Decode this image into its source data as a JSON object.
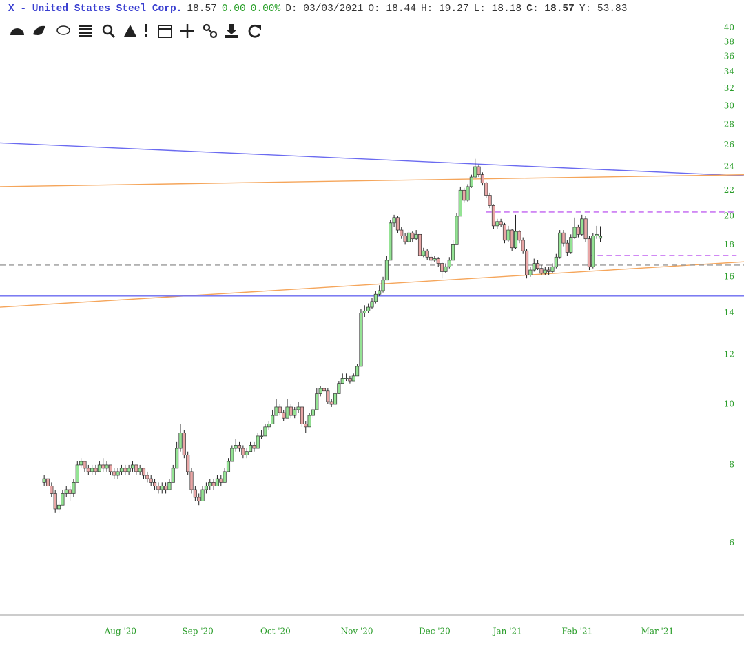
{
  "header": {
    "symbol": "X - United States Steel Corp.",
    "last": "18.57",
    "change": "0.00",
    "change_pct": "0.00%",
    "date": "D: 03/03/2021",
    "open": "O: 18.44",
    "high": "H: 19.27",
    "low": "L: 18.18",
    "close": "C: 18.57",
    "ytd": "Y: 53.83"
  },
  "chart_data": {
    "type": "candlestick",
    "log_scale": true,
    "grid": false,
    "up_color": "#94e394",
    "down_color": "#e8a6a6",
    "xlim": [
      -12,
      190
    ],
    "ylim": [
      4.6,
      41.1
    ],
    "yticks": [
      6,
      8,
      10,
      12,
      14,
      16,
      18,
      20,
      22,
      24,
      26,
      28,
      30,
      32,
      34,
      36,
      38,
      40
    ],
    "xticks": [
      {
        "value": 20.7,
        "label": "Aug '20"
      },
      {
        "value": 41.7,
        "label": "Sep '20"
      },
      {
        "value": 62.8,
        "label": "Oct '20"
      },
      {
        "value": 84.9,
        "label": "Nov '20"
      },
      {
        "value": 106,
        "label": "Dec '20"
      },
      {
        "value": 125.8,
        "label": "Jan '21"
      },
      {
        "value": 144.7,
        "label": "Feb '21"
      },
      {
        "value": 166.5,
        "label": "Mar '21"
      }
    ],
    "lines": [
      {
        "color": "#6a6af0",
        "dash": false,
        "start": [
          -12,
          26.2
        ],
        "end": [
          190,
          23.2
        ]
      },
      {
        "color": "#f5a55a",
        "dash": false,
        "start": [
          -12,
          22.3
        ],
        "end": [
          190,
          23.3
        ]
      },
      {
        "color": "#f5a55a",
        "dash": false,
        "start": [
          -12,
          14.3
        ],
        "end": [
          190,
          16.9
        ]
      },
      {
        "color": "#6a6af0",
        "dash": false,
        "start": [
          -12,
          14.9
        ],
        "end": [
          190,
          14.9
        ]
      },
      {
        "color": "#999999",
        "dash": true,
        "start": [
          -12,
          16.7
        ],
        "end": [
          190,
          16.7
        ]
      },
      {
        "color": "#c060f0",
        "dash": true,
        "start": [
          120,
          20.3
        ],
        "end": [
          188,
          20.3
        ]
      },
      {
        "color": "#c060f0",
        "dash": true,
        "start": [
          147.8,
          17.3
        ],
        "end": [
          188,
          17.3
        ]
      }
    ],
    "candles": [
      {
        "o": 7.5,
        "h": 7.7,
        "l": 7.4,
        "c": 7.6
      },
      {
        "o": 7.6,
        "h": 7.6,
        "l": 7.3,
        "c": 7.4
      },
      {
        "o": 7.4,
        "h": 7.5,
        "l": 7.1,
        "c": 7.2
      },
      {
        "o": 7.2,
        "h": 7.3,
        "l": 6.7,
        "c": 6.8
      },
      {
        "o": 6.8,
        "h": 7.0,
        "l": 6.7,
        "c": 6.9
      },
      {
        "o": 6.9,
        "h": 7.3,
        "l": 6.9,
        "c": 7.2
      },
      {
        "o": 7.2,
        "h": 7.4,
        "l": 7.1,
        "c": 7.3
      },
      {
        "o": 7.3,
        "h": 7.4,
        "l": 7.0,
        "c": 7.2
      },
      {
        "o": 7.2,
        "h": 7.6,
        "l": 7.1,
        "c": 7.5
      },
      {
        "o": 7.5,
        "h": 8.1,
        "l": 7.5,
        "c": 8.0
      },
      {
        "o": 8.0,
        "h": 8.2,
        "l": 7.9,
        "c": 8.1
      },
      {
        "o": 8.1,
        "h": 8.1,
        "l": 7.8,
        "c": 7.9
      },
      {
        "o": 7.9,
        "h": 8.0,
        "l": 7.7,
        "c": 7.8
      },
      {
        "o": 7.8,
        "h": 8.0,
        "l": 7.7,
        "c": 7.9
      },
      {
        "o": 7.9,
        "h": 8.0,
        "l": 7.7,
        "c": 7.8
      },
      {
        "o": 7.8,
        "h": 8.1,
        "l": 7.8,
        "c": 8.0
      },
      {
        "o": 8.0,
        "h": 8.2,
        "l": 7.8,
        "c": 7.9
      },
      {
        "o": 7.9,
        "h": 8.1,
        "l": 7.8,
        "c": 8.0
      },
      {
        "o": 8.0,
        "h": 8.0,
        "l": 7.7,
        "c": 7.8
      },
      {
        "o": 7.8,
        "h": 7.9,
        "l": 7.6,
        "c": 7.7
      },
      {
        "o": 7.7,
        "h": 7.9,
        "l": 7.6,
        "c": 7.8
      },
      {
        "o": 7.8,
        "h": 8.0,
        "l": 7.7,
        "c": 7.9
      },
      {
        "o": 7.9,
        "h": 8.0,
        "l": 7.7,
        "c": 7.8
      },
      {
        "o": 7.8,
        "h": 8.0,
        "l": 7.7,
        "c": 7.9
      },
      {
        "o": 7.9,
        "h": 8.1,
        "l": 7.8,
        "c": 8.0
      },
      {
        "o": 8.0,
        "h": 8.0,
        "l": 7.7,
        "c": 7.8
      },
      {
        "o": 7.8,
        "h": 8.0,
        "l": 7.7,
        "c": 7.9
      },
      {
        "o": 7.9,
        "h": 7.9,
        "l": 7.6,
        "c": 7.7
      },
      {
        "o": 7.7,
        "h": 7.8,
        "l": 7.5,
        "c": 7.6
      },
      {
        "o": 7.6,
        "h": 7.7,
        "l": 7.4,
        "c": 7.5
      },
      {
        "o": 7.5,
        "h": 7.6,
        "l": 7.3,
        "c": 7.4
      },
      {
        "o": 7.4,
        "h": 7.5,
        "l": 7.2,
        "c": 7.3
      },
      {
        "o": 7.3,
        "h": 7.5,
        "l": 7.2,
        "c": 7.4
      },
      {
        "o": 7.4,
        "h": 7.5,
        "l": 7.2,
        "c": 7.3
      },
      {
        "o": 7.3,
        "h": 7.6,
        "l": 7.3,
        "c": 7.5
      },
      {
        "o": 7.5,
        "h": 8.0,
        "l": 7.5,
        "c": 7.9
      },
      {
        "o": 7.9,
        "h": 8.7,
        "l": 7.9,
        "c": 8.5
      },
      {
        "o": 8.5,
        "h": 9.3,
        "l": 8.4,
        "c": 9.0
      },
      {
        "o": 9.0,
        "h": 9.1,
        "l": 8.2,
        "c": 8.3
      },
      {
        "o": 8.3,
        "h": 8.4,
        "l": 7.7,
        "c": 7.8
      },
      {
        "o": 7.8,
        "h": 7.9,
        "l": 7.2,
        "c": 7.3
      },
      {
        "o": 7.3,
        "h": 7.4,
        "l": 7.0,
        "c": 7.1
      },
      {
        "o": 7.1,
        "h": 7.2,
        "l": 6.9,
        "c": 7.0
      },
      {
        "o": 7.0,
        "h": 7.4,
        "l": 7.0,
        "c": 7.3
      },
      {
        "o": 7.3,
        "h": 7.5,
        "l": 7.2,
        "c": 7.4
      },
      {
        "o": 7.4,
        "h": 7.6,
        "l": 7.3,
        "c": 7.5
      },
      {
        "o": 7.5,
        "h": 7.6,
        "l": 7.3,
        "c": 7.4
      },
      {
        "o": 7.4,
        "h": 7.7,
        "l": 7.4,
        "c": 7.6
      },
      {
        "o": 7.6,
        "h": 7.7,
        "l": 7.4,
        "c": 7.5
      },
      {
        "o": 7.5,
        "h": 7.9,
        "l": 7.5,
        "c": 7.8
      },
      {
        "o": 7.8,
        "h": 8.2,
        "l": 7.8,
        "c": 8.1
      },
      {
        "o": 8.1,
        "h": 8.6,
        "l": 8.1,
        "c": 8.5
      },
      {
        "o": 8.5,
        "h": 8.8,
        "l": 8.4,
        "c": 8.6
      },
      {
        "o": 8.6,
        "h": 8.7,
        "l": 8.4,
        "c": 8.5
      },
      {
        "o": 8.5,
        "h": 8.6,
        "l": 8.2,
        "c": 8.3
      },
      {
        "o": 8.3,
        "h": 8.5,
        "l": 8.2,
        "c": 8.4
      },
      {
        "o": 8.4,
        "h": 8.7,
        "l": 8.4,
        "c": 8.6
      },
      {
        "o": 8.6,
        "h": 8.7,
        "l": 8.4,
        "c": 8.5
      },
      {
        "o": 8.5,
        "h": 9.0,
        "l": 8.5,
        "c": 8.9
      },
      {
        "o": 8.9,
        "h": 9.1,
        "l": 8.8,
        "c": 8.9
      },
      {
        "o": 8.9,
        "h": 9.3,
        "l": 8.9,
        "c": 9.2
      },
      {
        "o": 9.2,
        "h": 9.4,
        "l": 9.1,
        "c": 9.3
      },
      {
        "o": 9.3,
        "h": 9.8,
        "l": 9.3,
        "c": 9.6
      },
      {
        "o": 9.6,
        "h": 10.2,
        "l": 9.6,
        "c": 9.9
      },
      {
        "o": 9.9,
        "h": 10.0,
        "l": 9.6,
        "c": 9.7
      },
      {
        "o": 9.7,
        "h": 9.8,
        "l": 9.4,
        "c": 9.5
      },
      {
        "o": 9.5,
        "h": 10.2,
        "l": 9.5,
        "c": 9.9
      },
      {
        "o": 9.9,
        "h": 10.0,
        "l": 9.5,
        "c": 9.6
      },
      {
        "o": 9.6,
        "h": 9.9,
        "l": 9.5,
        "c": 9.8
      },
      {
        "o": 9.8,
        "h": 10.1,
        "l": 9.7,
        "c": 9.9
      },
      {
        "o": 9.9,
        "h": 9.9,
        "l": 9.2,
        "c": 9.3
      },
      {
        "o": 9.3,
        "h": 9.4,
        "l": 9.0,
        "c": 9.2
      },
      {
        "o": 9.2,
        "h": 9.7,
        "l": 9.2,
        "c": 9.6
      },
      {
        "o": 9.6,
        "h": 9.9,
        "l": 9.5,
        "c": 9.8
      },
      {
        "o": 9.8,
        "h": 10.6,
        "l": 9.8,
        "c": 10.4
      },
      {
        "o": 10.4,
        "h": 10.7,
        "l": 10.3,
        "c": 10.6
      },
      {
        "o": 10.6,
        "h": 10.7,
        "l": 10.3,
        "c": 10.5
      },
      {
        "o": 10.5,
        "h": 10.6,
        "l": 10.0,
        "c": 10.1
      },
      {
        "o": 10.1,
        "h": 10.2,
        "l": 9.9,
        "c": 10.0
      },
      {
        "o": 10.0,
        "h": 10.5,
        "l": 10.0,
        "c": 10.4
      },
      {
        "o": 10.4,
        "h": 10.9,
        "l": 10.4,
        "c": 10.8
      },
      {
        "o": 10.8,
        "h": 11.2,
        "l": 10.8,
        "c": 11.0
      },
      {
        "o": 11.0,
        "h": 11.2,
        "l": 10.9,
        "c": 11.0
      },
      {
        "o": 11.0,
        "h": 11.1,
        "l": 10.8,
        "c": 10.9
      },
      {
        "o": 10.9,
        "h": 11.2,
        "l": 10.9,
        "c": 11.1
      },
      {
        "o": 11.1,
        "h": 11.6,
        "l": 11.1,
        "c": 11.5
      },
      {
        "o": 11.5,
        "h": 14.2,
        "l": 11.5,
        "c": 14.0
      },
      {
        "o": 14.0,
        "h": 14.4,
        "l": 13.8,
        "c": 14.1
      },
      {
        "o": 14.1,
        "h": 14.5,
        "l": 14.0,
        "c": 14.3
      },
      {
        "o": 14.3,
        "h": 14.8,
        "l": 14.2,
        "c": 14.6
      },
      {
        "o": 14.6,
        "h": 15.2,
        "l": 14.5,
        "c": 15.0
      },
      {
        "o": 15.0,
        "h": 15.5,
        "l": 14.9,
        "c": 15.2
      },
      {
        "o": 15.2,
        "h": 16.0,
        "l": 15.1,
        "c": 15.8
      },
      {
        "o": 15.8,
        "h": 17.3,
        "l": 15.8,
        "c": 17.0
      },
      {
        "o": 17.0,
        "h": 19.7,
        "l": 17.0,
        "c": 19.5
      },
      {
        "o": 19.5,
        "h": 20.1,
        "l": 19.2,
        "c": 19.9
      },
      {
        "o": 19.9,
        "h": 20.0,
        "l": 18.8,
        "c": 19.0
      },
      {
        "o": 19.0,
        "h": 19.2,
        "l": 18.4,
        "c": 18.6
      },
      {
        "o": 18.6,
        "h": 18.8,
        "l": 18.0,
        "c": 18.2
      },
      {
        "o": 18.2,
        "h": 19.0,
        "l": 18.1,
        "c": 18.8
      },
      {
        "o": 18.8,
        "h": 18.9,
        "l": 18.2,
        "c": 18.4
      },
      {
        "o": 18.4,
        "h": 19.0,
        "l": 18.3,
        "c": 18.7
      },
      {
        "o": 18.7,
        "h": 18.8,
        "l": 17.1,
        "c": 17.3
      },
      {
        "o": 17.3,
        "h": 17.8,
        "l": 17.2,
        "c": 17.6
      },
      {
        "o": 17.6,
        "h": 17.7,
        "l": 17.0,
        "c": 17.2
      },
      {
        "o": 17.2,
        "h": 17.4,
        "l": 16.8,
        "c": 17.0
      },
      {
        "o": 17.0,
        "h": 17.3,
        "l": 16.9,
        "c": 17.1
      },
      {
        "o": 17.1,
        "h": 17.2,
        "l": 16.6,
        "c": 16.8
      },
      {
        "o": 16.8,
        "h": 16.9,
        "l": 15.9,
        "c": 16.3
      },
      {
        "o": 16.3,
        "h": 16.8,
        "l": 16.2,
        "c": 16.6
      },
      {
        "o": 16.6,
        "h": 17.2,
        "l": 16.5,
        "c": 17.0
      },
      {
        "o": 17.0,
        "h": 18.3,
        "l": 17.0,
        "c": 18.0
      },
      {
        "o": 18.0,
        "h": 20.2,
        "l": 18.0,
        "c": 20.0
      },
      {
        "o": 20.0,
        "h": 22.3,
        "l": 20.0,
        "c": 22.0
      },
      {
        "o": 22.0,
        "h": 22.2,
        "l": 21.0,
        "c": 21.2
      },
      {
        "o": 21.2,
        "h": 22.5,
        "l": 21.1,
        "c": 22.3
      },
      {
        "o": 22.3,
        "h": 23.3,
        "l": 22.2,
        "c": 23.1
      },
      {
        "o": 23.1,
        "h": 24.7,
        "l": 23.0,
        "c": 24.0
      },
      {
        "o": 24.0,
        "h": 24.2,
        "l": 23.1,
        "c": 23.3
      },
      {
        "o": 23.3,
        "h": 23.5,
        "l": 22.4,
        "c": 22.6
      },
      {
        "o": 22.6,
        "h": 22.7,
        "l": 21.4,
        "c": 21.6
      },
      {
        "o": 21.6,
        "h": 21.8,
        "l": 20.6,
        "c": 20.8
      },
      {
        "o": 20.8,
        "h": 20.9,
        "l": 19.1,
        "c": 19.3
      },
      {
        "o": 19.3,
        "h": 19.8,
        "l": 19.1,
        "c": 19.6
      },
      {
        "o": 19.6,
        "h": 19.8,
        "l": 19.2,
        "c": 19.4
      },
      {
        "o": 19.4,
        "h": 19.5,
        "l": 18.1,
        "c": 18.3
      },
      {
        "o": 18.3,
        "h": 19.3,
        "l": 18.2,
        "c": 19.0
      },
      {
        "o": 19.0,
        "h": 19.1,
        "l": 17.6,
        "c": 17.8
      },
      {
        "o": 17.8,
        "h": 20.1,
        "l": 17.7,
        "c": 18.9
      },
      {
        "o": 18.9,
        "h": 19.0,
        "l": 18.1,
        "c": 18.3
      },
      {
        "o": 18.3,
        "h": 18.5,
        "l": 17.4,
        "c": 17.6
      },
      {
        "o": 17.6,
        "h": 17.7,
        "l": 15.9,
        "c": 16.1
      },
      {
        "o": 16.1,
        "h": 16.6,
        "l": 16.0,
        "c": 16.4
      },
      {
        "o": 16.4,
        "h": 17.1,
        "l": 16.3,
        "c": 16.8
      },
      {
        "o": 16.8,
        "h": 17.0,
        "l": 16.4,
        "c": 16.5
      },
      {
        "o": 16.5,
        "h": 16.7,
        "l": 16.1,
        "c": 16.2
      },
      {
        "o": 16.2,
        "h": 16.6,
        "l": 16.1,
        "c": 16.4
      },
      {
        "o": 16.4,
        "h": 16.6,
        "l": 16.1,
        "c": 16.3
      },
      {
        "o": 16.3,
        "h": 16.8,
        "l": 16.2,
        "c": 16.6
      },
      {
        "o": 16.6,
        "h": 17.4,
        "l": 16.5,
        "c": 17.2
      },
      {
        "o": 17.2,
        "h": 19.0,
        "l": 17.1,
        "c": 18.8
      },
      {
        "o": 18.8,
        "h": 19.0,
        "l": 17.9,
        "c": 18.1
      },
      {
        "o": 18.1,
        "h": 18.3,
        "l": 17.3,
        "c": 17.5
      },
      {
        "o": 17.5,
        "h": 18.7,
        "l": 17.4,
        "c": 18.5
      },
      {
        "o": 18.5,
        "h": 19.9,
        "l": 18.4,
        "c": 19.2
      },
      {
        "o": 19.2,
        "h": 19.4,
        "l": 18.5,
        "c": 18.7
      },
      {
        "o": 18.7,
        "h": 20.1,
        "l": 18.6,
        "c": 19.8
      },
      {
        "o": 19.8,
        "h": 20.0,
        "l": 18.2,
        "c": 18.4
      },
      {
        "o": 18.4,
        "h": 18.6,
        "l": 16.4,
        "c": 16.6
      },
      {
        "o": 16.6,
        "h": 18.8,
        "l": 16.5,
        "c": 18.6
      },
      {
        "o": 18.6,
        "h": 19.3,
        "l": 18.4,
        "c": 18.7
      },
      {
        "o": 18.44,
        "h": 19.27,
        "l": 18.18,
        "c": 18.57
      }
    ]
  }
}
